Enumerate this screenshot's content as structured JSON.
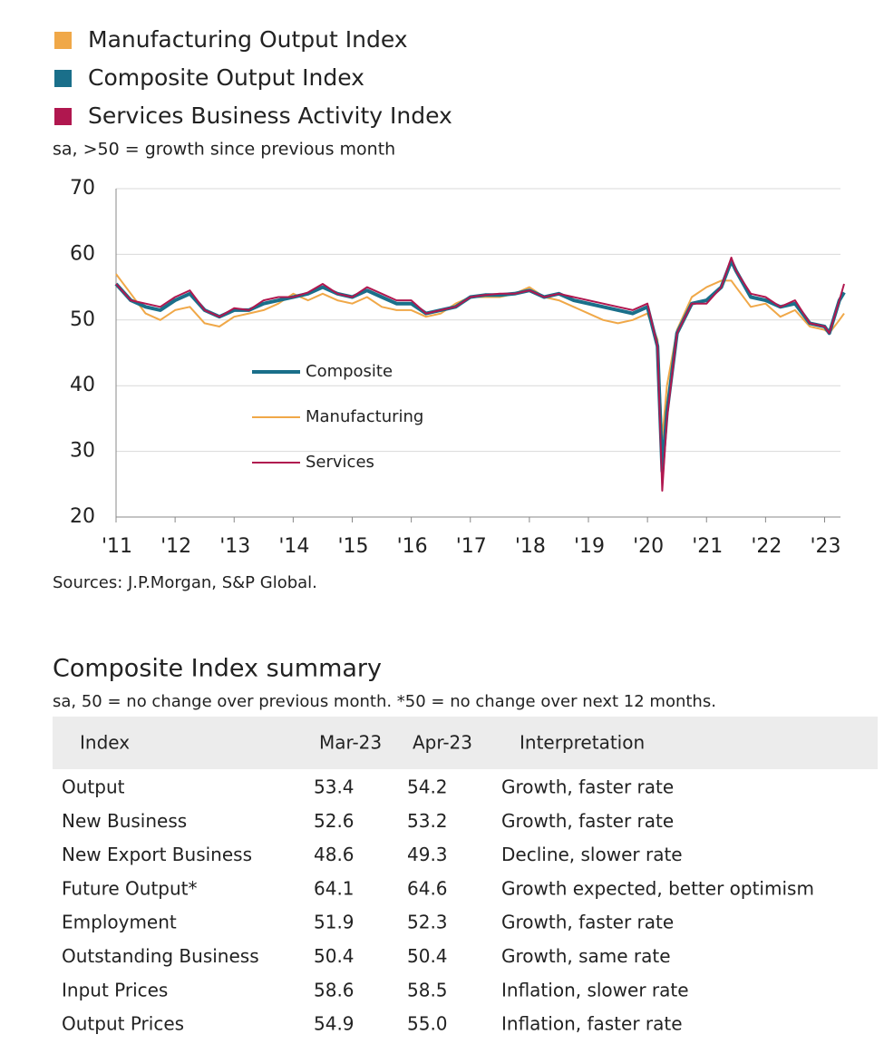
{
  "chart_data": {
    "type": "line",
    "subtitle": "sa, >50 = growth since previous month",
    "source": "Sources: J.P.Morgan, S&P Global.",
    "x": [
      2011,
      2011.25,
      2011.5,
      2011.75,
      2012,
      2012.25,
      2012.5,
      2012.75,
      2013,
      2013.25,
      2013.5,
      2013.75,
      2014,
      2014.25,
      2014.5,
      2014.75,
      2015,
      2015.25,
      2015.5,
      2015.75,
      2016,
      2016.25,
      2016.5,
      2016.75,
      2017,
      2017.25,
      2017.5,
      2017.75,
      2018,
      2018.25,
      2018.5,
      2018.75,
      2019,
      2019.25,
      2019.5,
      2019.75,
      2020,
      2020.17,
      2020.25,
      2020.33,
      2020.5,
      2020.75,
      2021,
      2021.25,
      2021.42,
      2021.5,
      2021.75,
      2022,
      2022.25,
      2022.5,
      2022.75,
      2023,
      2023.08,
      2023.25,
      2023.33
    ],
    "series": [
      {
        "name": "Manufacturing Output Index",
        "label": "Manufacturing",
        "color": "#f0a848",
        "width": 2,
        "values": [
          57,
          54,
          51,
          50,
          51.5,
          52,
          49.5,
          49,
          50.5,
          51,
          51.5,
          52.5,
          54,
          53,
          54,
          53,
          52.5,
          53.5,
          52,
          51.5,
          51.5,
          50.5,
          51,
          52.5,
          53.5,
          53.5,
          53.5,
          54,
          55,
          53.5,
          53,
          52,
          51,
          50,
          49.5,
          50,
          51,
          47,
          32,
          40,
          48.5,
          53.5,
          55,
          56,
          56,
          55,
          52,
          52.5,
          50.5,
          51.5,
          49,
          48.5,
          48,
          50,
          51
        ]
      },
      {
        "name": "Composite Output Index",
        "label": "Composite",
        "color": "#1a6f8a",
        "width": 4,
        "values": [
          55.5,
          53,
          52,
          51.5,
          53,
          54,
          51.5,
          50.5,
          51.5,
          51.5,
          52.5,
          53,
          53.5,
          54,
          55,
          54,
          53.5,
          54.5,
          53.5,
          52.5,
          52.5,
          51,
          51.5,
          52,
          53.5,
          53.8,
          53.8,
          54,
          54.5,
          53.5,
          54,
          53,
          52.5,
          52,
          51.5,
          51,
          52,
          46,
          27,
          36,
          48,
          52.5,
          53,
          55,
          59,
          57.5,
          53.5,
          53,
          52,
          52.5,
          49.5,
          49,
          48,
          53,
          54.2
        ]
      },
      {
        "name": "Services Business Activity Index",
        "label": "Services",
        "color": "#b0174f",
        "width": 2,
        "values": [
          55.5,
          53,
          52.5,
          52,
          53.5,
          54.5,
          51.5,
          50.5,
          51.8,
          51.5,
          53,
          53.5,
          53.5,
          54.2,
          55.5,
          54,
          53.5,
          55,
          54,
          53,
          53,
          51,
          51.5,
          52,
          53.5,
          53.8,
          54,
          54,
          54.5,
          53.5,
          54,
          53.5,
          53,
          52.5,
          52,
          51.5,
          52.5,
          46,
          24,
          35,
          48,
          52.5,
          52.5,
          55,
          59.5,
          57.5,
          54,
          53.5,
          52,
          53,
          49.5,
          49,
          48,
          53,
          55.5
        ]
      }
    ],
    "xlim": [
      2011,
      2023.33
    ],
    "xticks": [
      {
        "value": 2011,
        "label": "'11"
      },
      {
        "value": 2012,
        "label": "'12"
      },
      {
        "value": 2013,
        "label": "'13"
      },
      {
        "value": 2014,
        "label": "'14"
      },
      {
        "value": 2015,
        "label": "'15"
      },
      {
        "value": 2016,
        "label": "'16"
      },
      {
        "value": 2017,
        "label": "'17"
      },
      {
        "value": 2018,
        "label": "'18"
      },
      {
        "value": 2019,
        "label": "'19"
      },
      {
        "value": 2020,
        "label": "'20"
      },
      {
        "value": 2021,
        "label": "'21"
      },
      {
        "value": 2022,
        "label": "'22"
      },
      {
        "value": 2023,
        "label": "'23"
      }
    ],
    "ylim": [
      20,
      70
    ],
    "yticks": [
      20,
      30,
      40,
      50,
      60,
      70
    ],
    "grid": true
  },
  "table": {
    "title": "Composite Index summary",
    "subtitle": "sa, 50 = no change over previous month. *50 = no change over next 12 months.",
    "header": [
      "Index",
      "Mar-23",
      "Apr-23",
      "Interpretation"
    ],
    "rows": [
      [
        "Output",
        "53.4",
        "54.2",
        "Growth, faster rate"
      ],
      [
        "New Business",
        "52.6",
        "53.2",
        "Growth, faster rate"
      ],
      [
        "New Export Business",
        "48.6",
        "49.3",
        "Decline, slower rate"
      ],
      [
        "Future Output*",
        "64.1",
        "64.6",
        "Growth expected, better optimism"
      ],
      [
        "Employment",
        "51.9",
        "52.3",
        "Growth, faster rate"
      ],
      [
        "Outstanding Business",
        "50.4",
        "50.4",
        "Growth, same rate"
      ],
      [
        "Input Prices",
        "58.6",
        "58.5",
        "Inflation, slower rate"
      ],
      [
        "Output Prices",
        "54.9",
        "55.0",
        "Inflation, faster rate"
      ]
    ]
  }
}
